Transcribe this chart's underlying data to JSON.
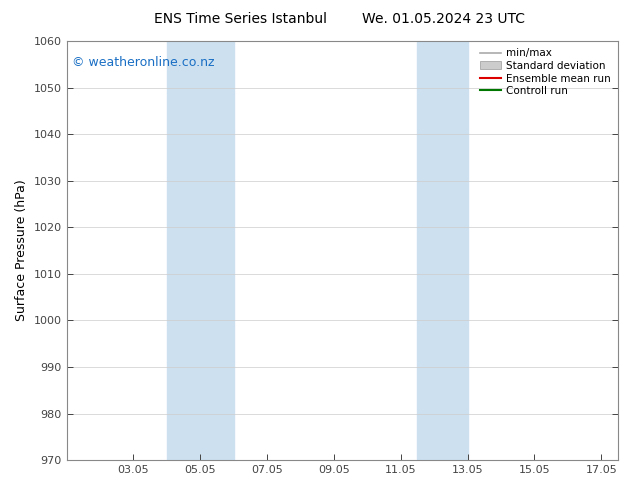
{
  "title1": "ENS Time Series Istanbul",
  "title2": "We. 01.05.2024 23 UTC",
  "ylabel": "Surface Pressure (hPa)",
  "ylim": [
    970,
    1060
  ],
  "yticks": [
    970,
    980,
    990,
    1000,
    1010,
    1020,
    1030,
    1040,
    1050,
    1060
  ],
  "xlim": [
    1.0,
    17.5
  ],
  "xtick_labels": [
    "03.05",
    "05.05",
    "07.05",
    "09.05",
    "11.05",
    "13.05",
    "15.05",
    "17.05"
  ],
  "xtick_positions": [
    3,
    5,
    7,
    9,
    11,
    13,
    15,
    17
  ],
  "background_color": "#ffffff",
  "plot_bg_color": "#ffffff",
  "shaded_regions": [
    {
      "xmin": 4.0,
      "xmax": 6.0,
      "color": "#cce0f0",
      "alpha": 1.0
    },
    {
      "xmin": 11.5,
      "xmax": 13.0,
      "color": "#cce0f0",
      "alpha": 1.0
    }
  ],
  "watermark_text": "© weatheronline.co.nz",
  "watermark_color": "#1a6fc4",
  "watermark_fontsize": 9,
  "legend_items": [
    {
      "label": "min/max",
      "type": "line",
      "color": "#aaaaaa",
      "lw": 1.2
    },
    {
      "label": "Standard deviation",
      "type": "box",
      "color": "#cccccc"
    },
    {
      "label": "Ensemble mean run",
      "type": "line",
      "color": "#dd0000",
      "lw": 1.5
    },
    {
      "label": "Controll run",
      "type": "line",
      "color": "#007700",
      "lw": 1.5
    }
  ],
  "title_fontsize": 10,
  "tick_fontsize": 8,
  "ylabel_fontsize": 9,
  "grid_color": "#cccccc",
  "grid_lw": 0.5,
  "spine_color": "#888888",
  "tick_color": "#444444"
}
